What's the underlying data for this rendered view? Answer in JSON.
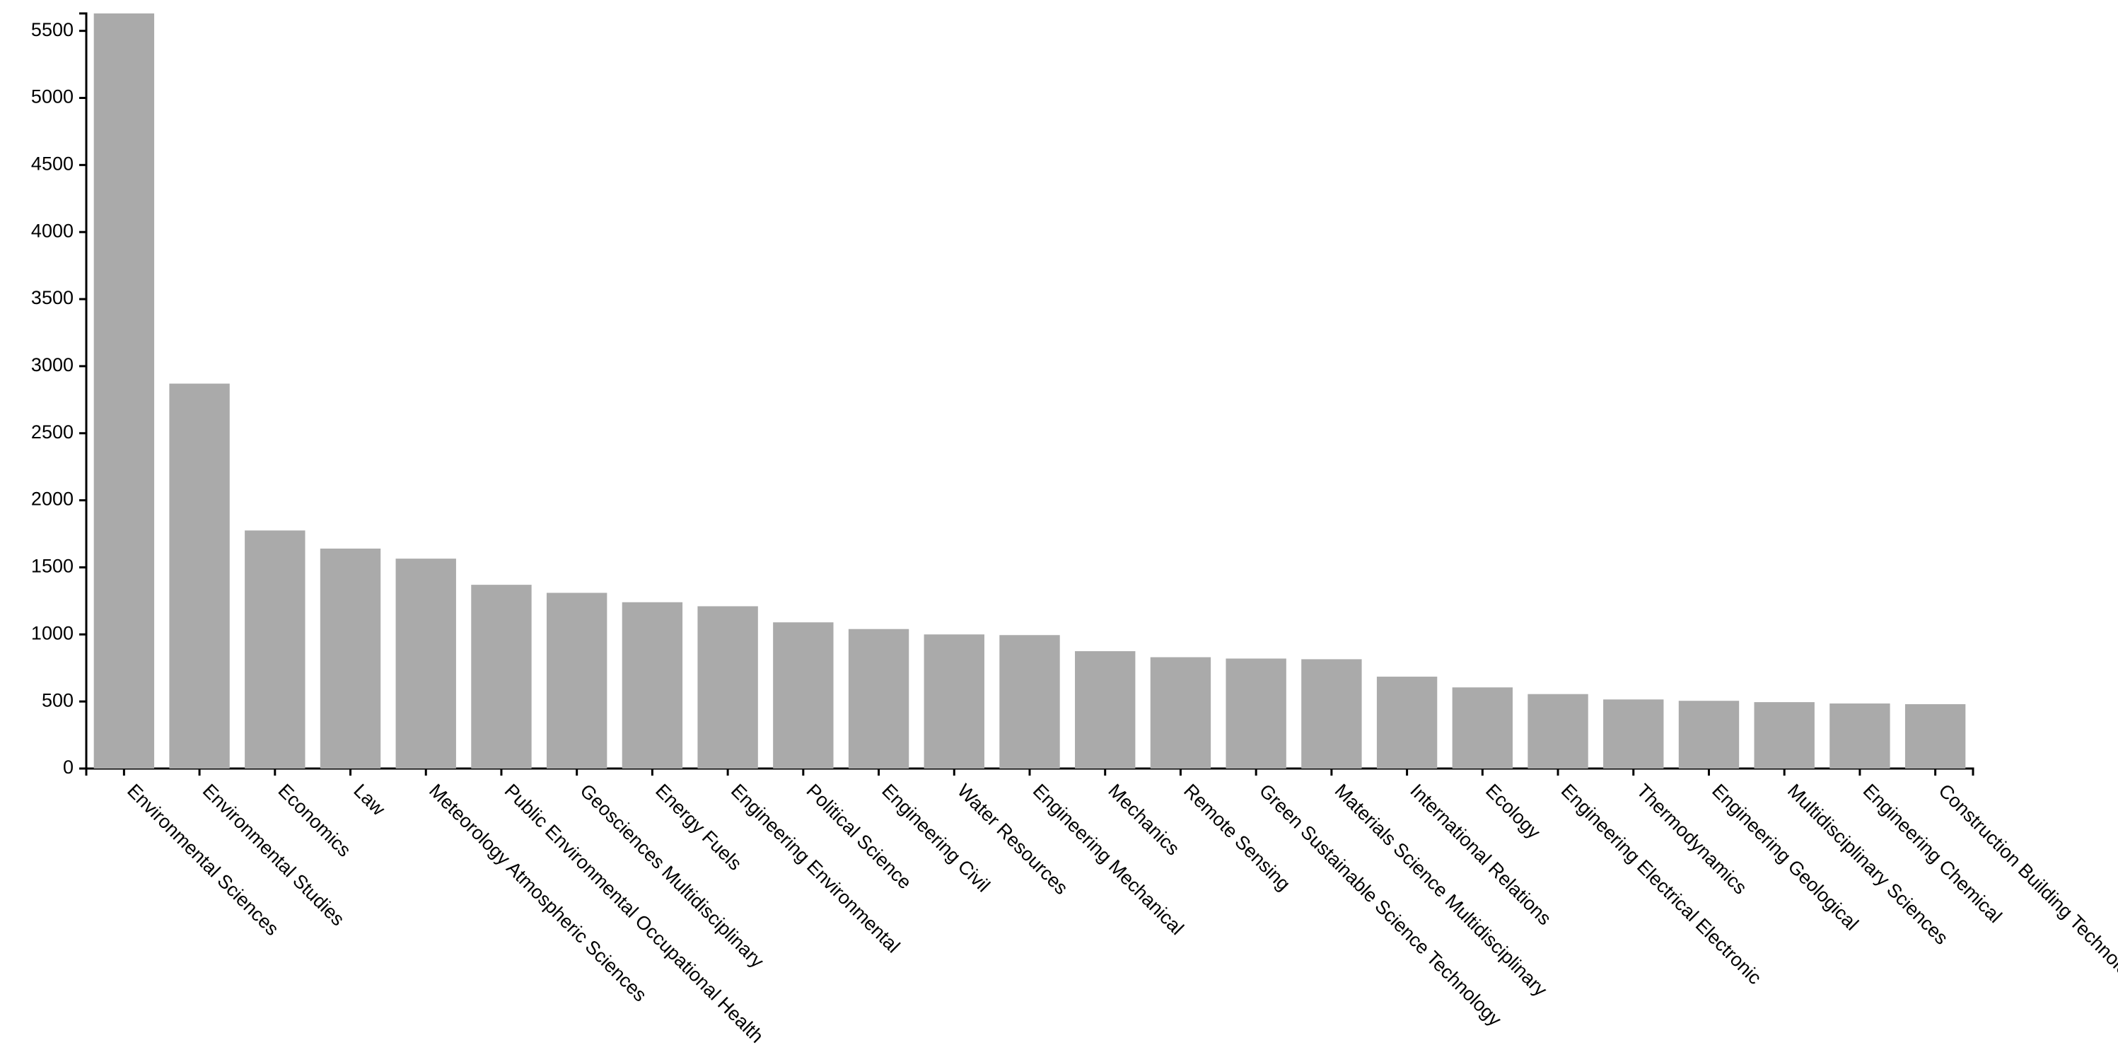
{
  "chart_data": {
    "type": "bar",
    "categories": [
      "Environmental Sciences",
      "Environmental Studies",
      "Economics",
      "Law",
      "Meteorology Atmospheric Sciences",
      "Public Environmental Occupational Health",
      "Geosciences Multidisciplinary",
      "Energy Fuels",
      "Engineering Environmental",
      "Political Science",
      "Engineering Civil",
      "Water Resources",
      "Engineering Mechanical",
      "Mechanics",
      "Remote Sensing",
      "Green Sustainable Science Technology",
      "Materials Science Multidisciplinary",
      "International Relations",
      "Ecology",
      "Engineering Electrical Electronic",
      "Thermodynamics",
      "Engineering Geological",
      "Multidisciplinary Sciences",
      "Engineering Chemical",
      "Construction Building Technology"
    ],
    "values": [
      5630,
      2870,
      1775,
      1640,
      1565,
      1370,
      1310,
      1240,
      1210,
      1090,
      1040,
      1000,
      995,
      875,
      830,
      820,
      815,
      685,
      605,
      555,
      515,
      505,
      495,
      485,
      480
    ],
    "color": "#aaaaaa",
    "ylim": [
      0,
      5630
    ],
    "yticks": [
      0,
      500,
      1000,
      1500,
      2000,
      2500,
      3000,
      3500,
      4000,
      4500,
      5000,
      5500
    ]
  }
}
